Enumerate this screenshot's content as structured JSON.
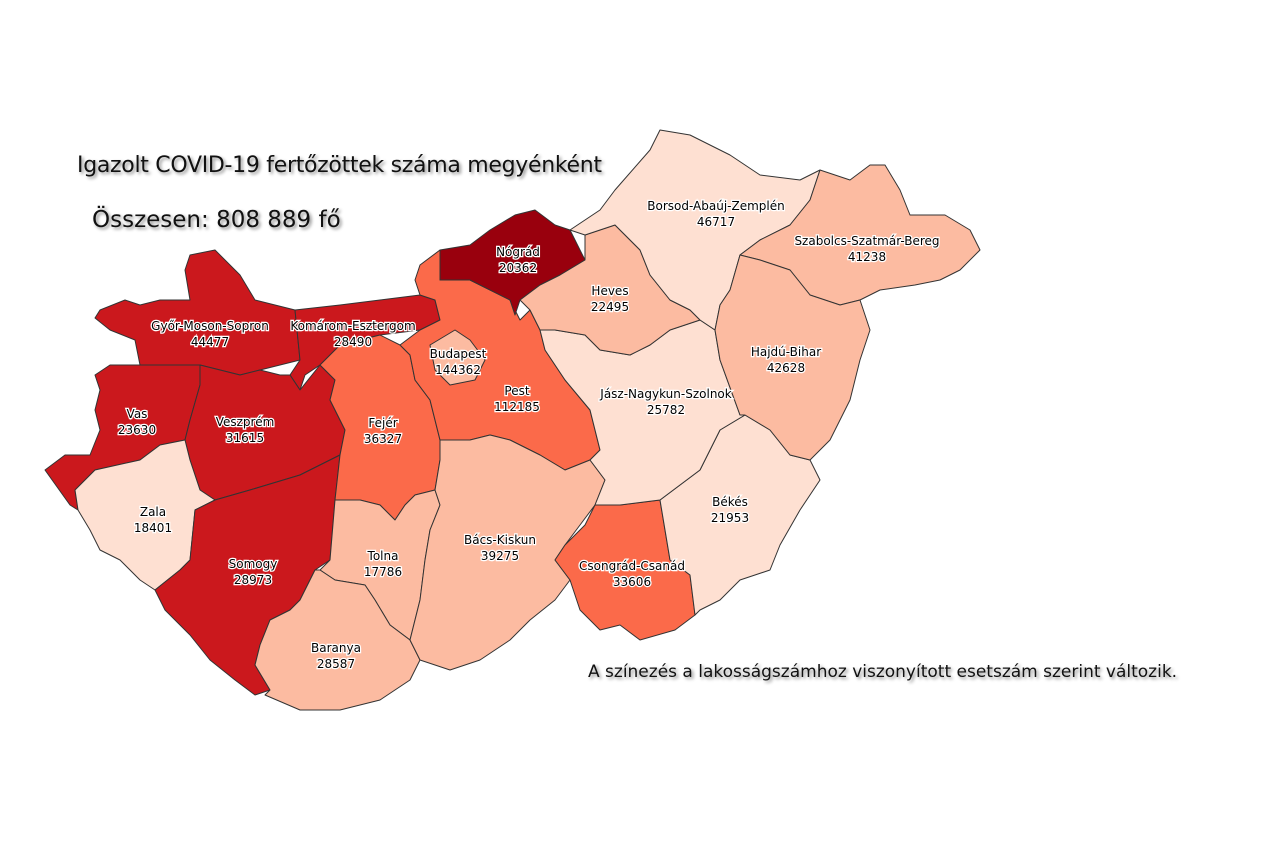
{
  "title": "Igazolt COVID-19 fertőzöttek száma megyénként",
  "total": "Összesen: 808 889 fő",
  "note": "A színezés a lakosságszámhoz viszonyított esetszám szerint változik.",
  "colors": {
    "c1": "#fee0d2",
    "c2": "#fcbba1",
    "c3": "#fb6a4a",
    "c4": "#cb181d",
    "c5": "#99000d"
  },
  "counties": [
    {
      "name": "Győr-Moson-Sopron",
      "cases": "44477",
      "class": "c4"
    },
    {
      "name": "Komárom-Esztergom",
      "cases": "28490",
      "class": "c4"
    },
    {
      "name": "Vas",
      "cases": "23630",
      "class": "c4"
    },
    {
      "name": "Veszprém",
      "cases": "31615",
      "class": "c4"
    },
    {
      "name": "Zala",
      "cases": "18401",
      "class": "c1"
    },
    {
      "name": "Somogy",
      "cases": "28973",
      "class": "c4"
    },
    {
      "name": "Fejér",
      "cases": "36327",
      "class": "c3"
    },
    {
      "name": "Tolna",
      "cases": "17786",
      "class": "c2"
    },
    {
      "name": "Baranya",
      "cases": "28587",
      "class": "c2"
    },
    {
      "name": "Pest",
      "cases": "112185",
      "class": "c3"
    },
    {
      "name": "Budapest",
      "cases": "144362",
      "class": "c2"
    },
    {
      "name": "Nógrád",
      "cases": "20362",
      "class": "c5"
    },
    {
      "name": "Bács-Kiskun",
      "cases": "39275",
      "class": "c2"
    },
    {
      "name": "Csongrád-Csanád",
      "cases": "33606",
      "class": "c3"
    },
    {
      "name": "Békés",
      "cases": "21953",
      "class": "c1"
    },
    {
      "name": "Jász-Nagykun-Szolnok",
      "cases": "25782",
      "class": "c1"
    },
    {
      "name": "Heves",
      "cases": "22495",
      "class": "c2"
    },
    {
      "name": "Borsod-Abaúj-Zemplén",
      "cases": "46717",
      "class": "c1"
    },
    {
      "name": "Szabolcs-Szatmár-Bereg",
      "cases": "41238",
      "class": "c2"
    },
    {
      "name": "Hajdú-Bihar",
      "cases": "42628",
      "class": "c2"
    }
  ]
}
